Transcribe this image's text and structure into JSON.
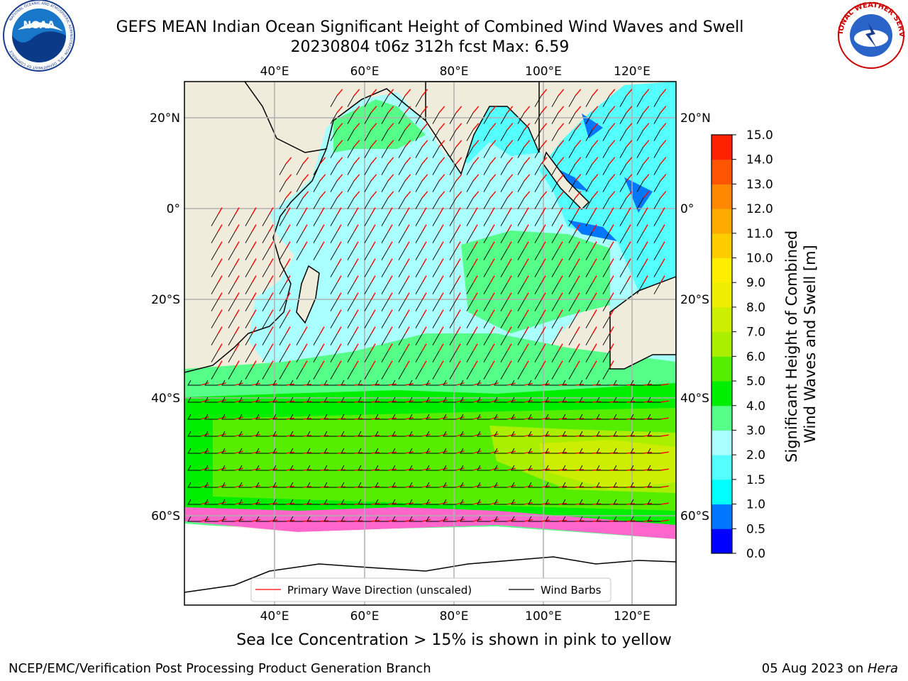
{
  "header": {
    "title_line1": "GEFS MEAN Indian Ocean Significant Height of Combined Wind Waves and Swell",
    "title_line2": "20230804 t06z 312h fcst   Max: 6.59"
  },
  "logos": {
    "left": {
      "name": "noaa-logo",
      "text": "NOAA",
      "ring_text": "NATIONAL OCEANIC AND ATMOSPHERIC ADMINISTRATION · U.S. DEPARTMENT OF COMMERCE"
    },
    "right": {
      "name": "nws-logo",
      "ring_text": "NATIONAL WEATHER SERVICE"
    }
  },
  "map": {
    "lon_top_labels": [
      "40°E",
      "60°E",
      "80°E",
      "100°E",
      "120°E"
    ],
    "lon_bottom_labels": [
      "40°E",
      "60°E",
      "80°E",
      "100°E",
      "120°E"
    ],
    "lat_left_labels": [
      "20°N",
      "0°",
      "20°S",
      "40°S",
      "60°S"
    ],
    "lat_right_labels": [
      "20°N",
      "0°",
      "20°S",
      "40°S",
      "60°S"
    ],
    "land_color": "#efecdc",
    "legend": {
      "wave_direction": "Primary Wave Direction (unscaled)",
      "wind_barbs": "Wind Barbs",
      "wave_color": "#ff0000",
      "barb_color": "#000000"
    }
  },
  "colorbar": {
    "label_line1": "Significant Height of Combined",
    "label_line2": "Wind Waves and Swell [m]",
    "ticks": [
      "0.0",
      "0.5",
      "1.0",
      "1.5",
      "2.0",
      "3.0",
      "4.0",
      "5.0",
      "6.0",
      "7.0",
      "8.0",
      "9.0",
      "10.0",
      "11.0",
      "12.0",
      "13.0",
      "14.0",
      "15.0"
    ],
    "colors": [
      "#0000ff",
      "#0077ff",
      "#00ffff",
      "#55ffff",
      "#aaffff",
      "#55ff88",
      "#00ee00",
      "#55ee00",
      "#aaee00",
      "#ccee00",
      "#eeee00",
      "#ffee00",
      "#ffcc00",
      "#ffaa00",
      "#ff8800",
      "#ff5500",
      "#ff2200"
    ]
  },
  "footer": {
    "note": "Sea Ice Concentration > 15% is shown in pink to yellow",
    "credit": "NCEP/EMC/Verification Post Processing Product Generation Branch",
    "date_prefix": "05 Aug 2023 on ",
    "date_machine": "Hera"
  }
}
